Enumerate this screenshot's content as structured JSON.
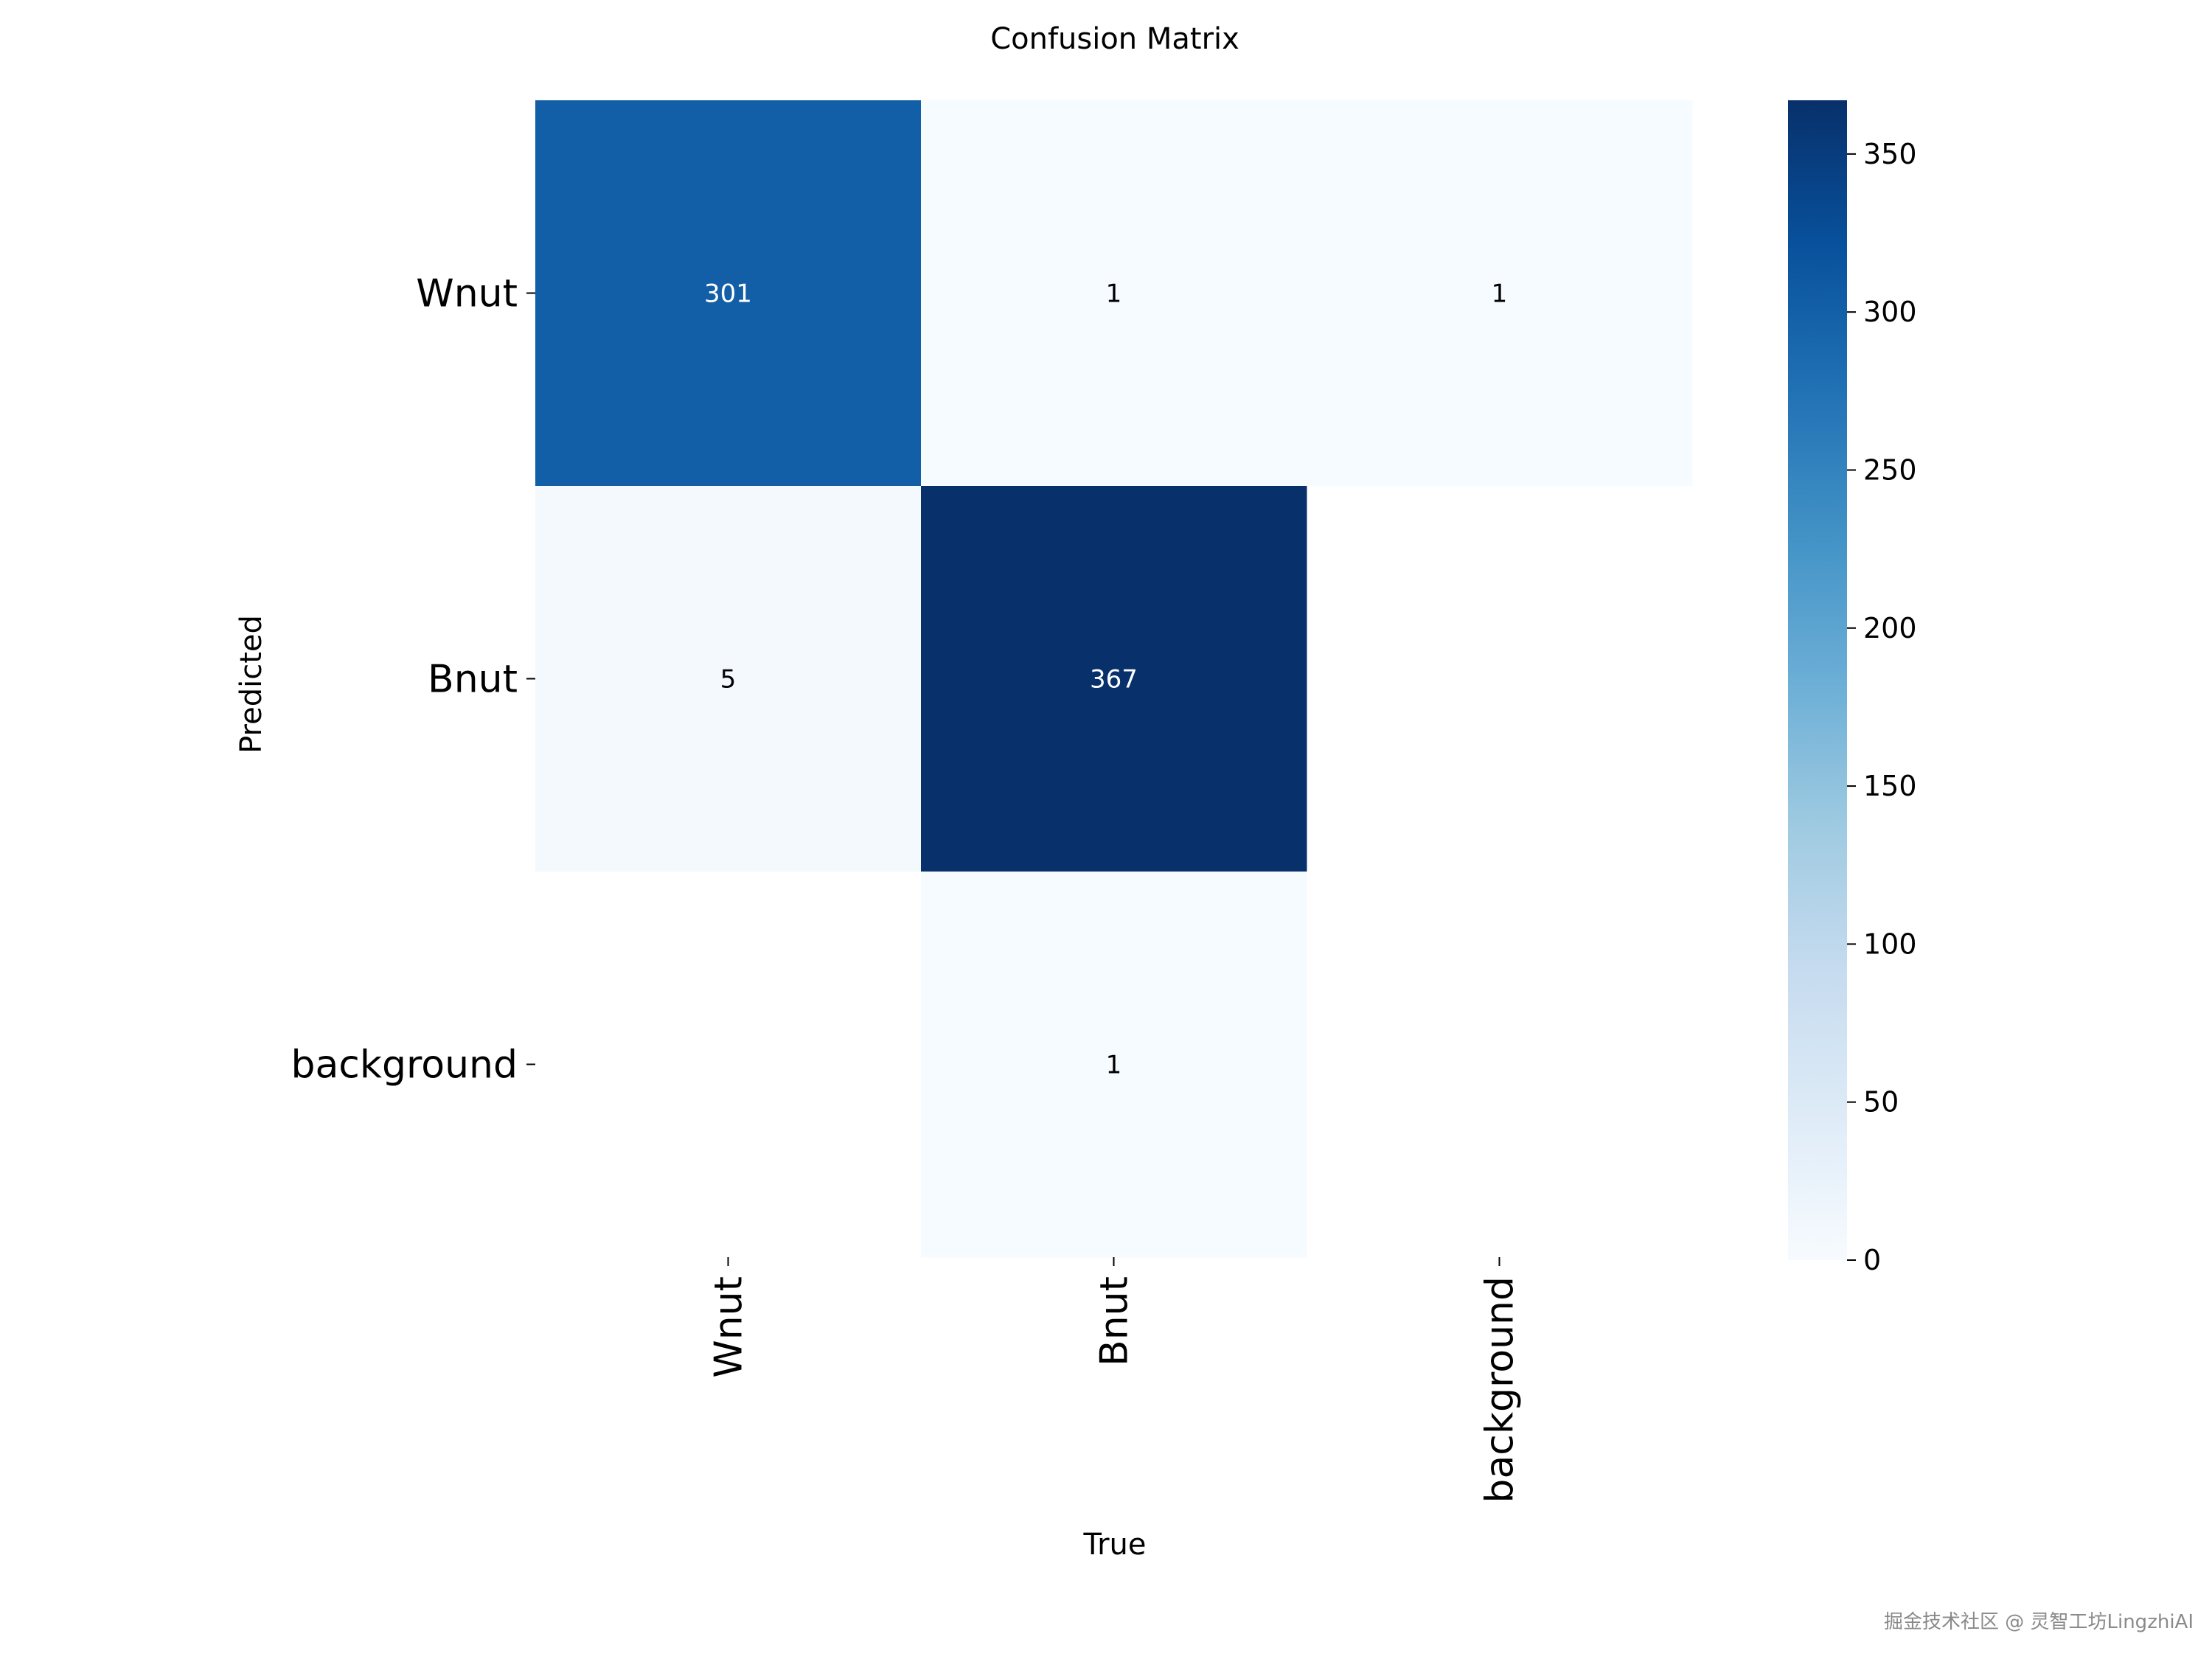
{
  "chart_data": {
    "type": "heatmap",
    "title": "Confusion Matrix",
    "xlabel": "True",
    "ylabel": "Predicted",
    "x_categories": [
      "Wnut",
      "Bnut",
      "background"
    ],
    "y_categories": [
      "Wnut",
      "Bnut",
      "background"
    ],
    "matrix": [
      [
        301,
        1,
        1
      ],
      [
        5,
        367,
        null
      ],
      [
        null,
        1,
        null
      ]
    ],
    "colormap": "Blues",
    "colorbar": {
      "min": 0,
      "max": 367,
      "ticks": [
        0,
        50,
        100,
        150,
        200,
        250,
        300,
        350
      ]
    }
  },
  "watermark": "掘金技术社区 @ 灵智工坊LingzhiAI",
  "colors": {
    "blues": [
      "#f7fbff",
      "#deebf7",
      "#c6dbef",
      "#9ecae1",
      "#6baed6",
      "#4292c6",
      "#2171b5",
      "#08519c",
      "#08306b"
    ],
    "dark_text": "#000000",
    "light_text": "#ffffff"
  }
}
